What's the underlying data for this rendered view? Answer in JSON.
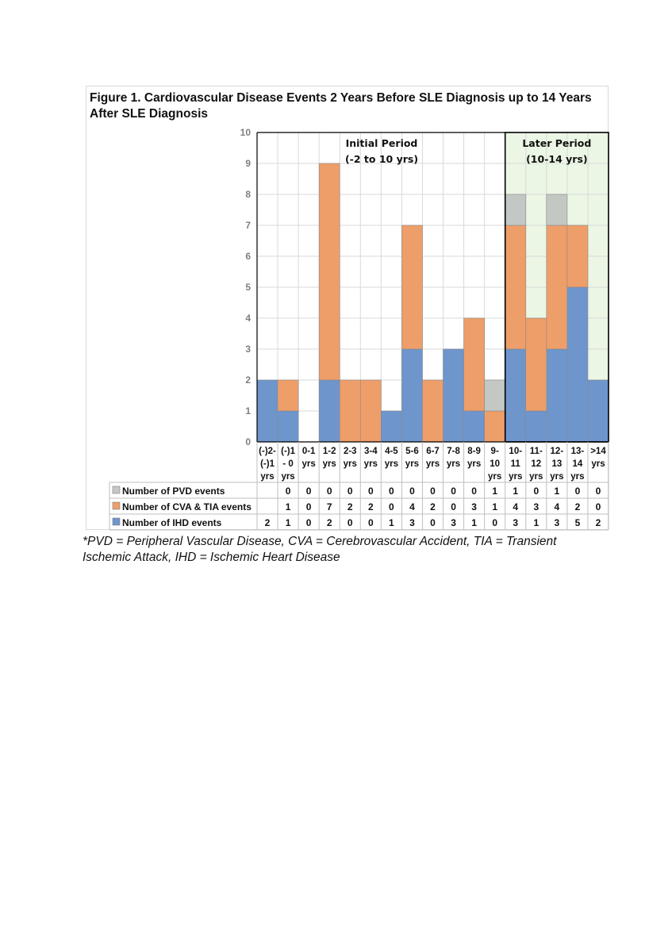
{
  "figure": {
    "title": "Figure 1. Cardiovascular Disease Events 2 Years Before SLE Diagnosis up to 14 Years\nAfter SLE Diagnosis",
    "footnote": "*PVD = Peripheral Vascular Disease, CVA = Cerebrovascular Accident, TIA = Transient\nIschemic Attack, IHD = Ischemic Heart Disease"
  },
  "colors": {
    "ihd": "#6f95cd",
    "cva": "#ee9e68",
    "pvd": "#c4c8c4",
    "later_bg": "#ecf6e4",
    "grid": "#d9d9d9",
    "border": "#000000"
  },
  "chart_data": {
    "type": "bar",
    "stacked": true,
    "title": "Figure 1. Cardiovascular Disease Events 2 Years Before SLE Diagnosis up to 14 Years After SLE Diagnosis",
    "categories": [
      [
        "(-)2-",
        "(-)1",
        "yrs"
      ],
      [
        "(-)1",
        "- 0",
        "yrs"
      ],
      [
        "0-1",
        "yrs"
      ],
      [
        "1-2",
        "yrs"
      ],
      [
        "2-3",
        "yrs"
      ],
      [
        "3-4",
        "yrs"
      ],
      [
        "4-5",
        "yrs"
      ],
      [
        "5-6",
        "yrs"
      ],
      [
        "6-7",
        "yrs"
      ],
      [
        "7-8",
        "yrs"
      ],
      [
        "8-9",
        "yrs"
      ],
      [
        "9-",
        "10",
        "yrs"
      ],
      [
        "10-",
        "11",
        "yrs"
      ],
      [
        "11-",
        "12",
        "yrs"
      ],
      [
        "12-",
        "13",
        "yrs"
      ],
      [
        "13-",
        "14",
        "yrs"
      ],
      [
        ">14",
        "yrs"
      ]
    ],
    "series": [
      {
        "name": "Number of IHD events",
        "key": "ihd",
        "values": [
          2,
          1,
          0,
          2,
          0,
          0,
          1,
          3,
          0,
          3,
          1,
          0,
          3,
          1,
          3,
          5,
          2
        ]
      },
      {
        "name": "Number of CVA & TIA events",
        "key": "cva",
        "values": [
          null,
          1,
          0,
          7,
          2,
          2,
          0,
          4,
          2,
          0,
          3,
          1,
          4,
          3,
          4,
          2,
          0
        ]
      },
      {
        "name": "Number of PVD events",
        "key": "pvd",
        "values": [
          null,
          0,
          0,
          0,
          0,
          0,
          0,
          0,
          0,
          0,
          0,
          1,
          1,
          0,
          1,
          0,
          0
        ]
      }
    ],
    "table_row_order": [
      "pvd",
      "cva",
      "ihd"
    ],
    "ylim": [
      0,
      10
    ],
    "yticks": [
      0,
      1,
      2,
      3,
      4,
      5,
      6,
      7,
      8,
      9,
      10
    ],
    "grid": true,
    "legend": "data table below chart",
    "periods": [
      {
        "label": [
          "Initial Period",
          "(-2 to 10 yrs)"
        ],
        "start": 0,
        "end": 11
      },
      {
        "label": [
          "Later Period",
          "(10-14 yrs)"
        ],
        "start": 12,
        "end": 16
      }
    ]
  }
}
